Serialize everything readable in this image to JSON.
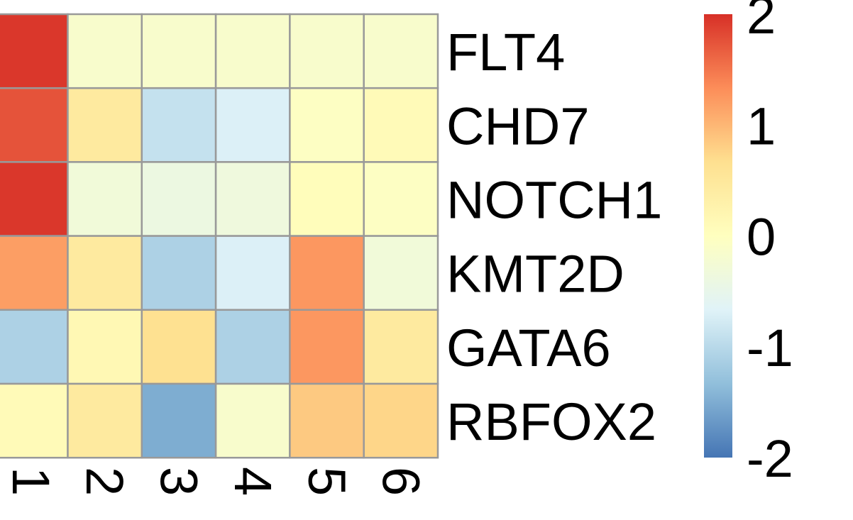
{
  "chart_data": {
    "type": "heatmap",
    "rows": [
      "FLT4",
      "CHD7",
      "NOTCH1",
      "KMT2D",
      "GATA6",
      "RBFOX2"
    ],
    "columns": [
      "1",
      "2",
      "3",
      "4",
      "5",
      "6"
    ],
    "values": [
      [
        1.95,
        -0.15,
        -0.15,
        -0.15,
        -0.15,
        -0.15
      ],
      [
        1.75,
        0.45,
        -0.9,
        -0.7,
        -0.05,
        0.1
      ],
      [
        1.95,
        -0.3,
        -0.4,
        -0.35,
        0.05,
        -0.05
      ],
      [
        1.2,
        0.45,
        -1.1,
        -0.7,
        1.25,
        -0.3
      ],
      [
        -1.1,
        0.15,
        0.65,
        -1.1,
        1.25,
        0.45
      ],
      [
        0.1,
        0.45,
        -1.5,
        -0.15,
        0.85,
        0.75
      ]
    ],
    "colorbar": {
      "ticks": [
        "2",
        "1",
        "0",
        "-1",
        "-2"
      ],
      "range": [
        -2,
        2
      ],
      "palette": [
        "#4575B4",
        "#91BFDB",
        "#E0F3F8",
        "#FFFFBF",
        "#FEE090",
        "#FC8D59",
        "#D73027"
      ]
    },
    "cell_border_color": "#999999",
    "grid": true,
    "legend": "right"
  }
}
